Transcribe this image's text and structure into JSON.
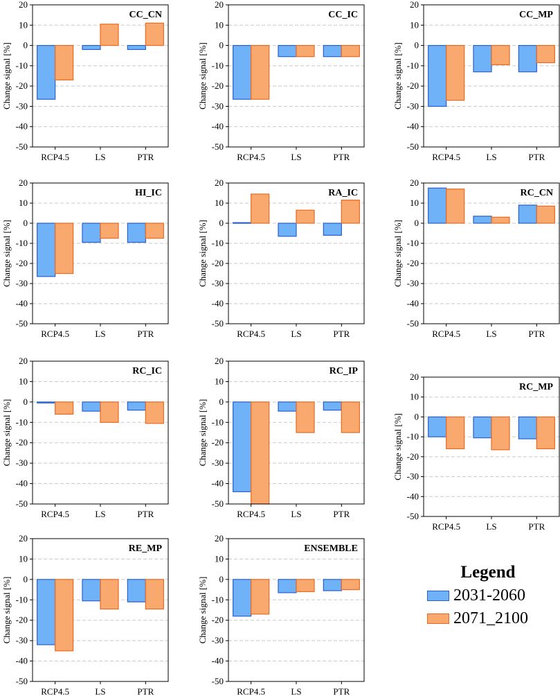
{
  "chart_data": {
    "type": "bar",
    "ylabel": "Change signal [%]",
    "ylim": [
      -50,
      20
    ],
    "yticks": [
      "20",
      "10",
      "0",
      "-10",
      "-20",
      "-30",
      "-40",
      "-50"
    ],
    "categories": [
      "RCP4.5",
      "LS",
      "PTR"
    ],
    "series_colors": {
      "2031-2060": {
        "fill": "#6fb2f7",
        "stroke": "#2a5fcf"
      },
      "2071_2100": {
        "fill": "#f9a86e",
        "stroke": "#ea6a23"
      }
    },
    "panels": [
      {
        "title": "CC_CN",
        "series": [
          {
            "name": "2031-2060",
            "values": [
              -26.5,
              -2,
              -2
            ]
          },
          {
            "name": "2071_2100",
            "values": [
              -17,
              10.5,
              11
            ]
          }
        ]
      },
      {
        "title": "CC_IC",
        "series": [
          {
            "name": "2031-2060",
            "values": [
              -26.5,
              -5.5,
              -5.5
            ]
          },
          {
            "name": "2071_2100",
            "values": [
              -26.5,
              -5.5,
              -5.5
            ]
          }
        ]
      },
      {
        "title": "CC_MP",
        "series": [
          {
            "name": "2031-2060",
            "values": [
              -30,
              -13,
              -13
            ]
          },
          {
            "name": "2071_2100",
            "values": [
              -27,
              -9.5,
              -8.5
            ]
          }
        ]
      },
      {
        "title": "HI_IC",
        "series": [
          {
            "name": "2031-2060",
            "values": [
              -26.5,
              -9.5,
              -9.5
            ]
          },
          {
            "name": "2071_2100",
            "values": [
              -25,
              -7.5,
              -7.5
            ]
          }
        ]
      },
      {
        "title": "RA_IC",
        "series": [
          {
            "name": "2031-2060",
            "values": [
              0.3,
              -6.5,
              -6
            ]
          },
          {
            "name": "2071_2100",
            "values": [
              14.5,
              6.5,
              11.5
            ]
          }
        ]
      },
      {
        "title": "RC_CN",
        "series": [
          {
            "name": "2031-2060",
            "values": [
              17.5,
              3.5,
              9
            ]
          },
          {
            "name": "2071_2100",
            "values": [
              17,
              3,
              8.5
            ]
          }
        ]
      },
      {
        "title": "RC_IC",
        "series": [
          {
            "name": "2031-2060",
            "values": [
              -0.5,
              -4.5,
              -4
            ]
          },
          {
            "name": "2071_2100",
            "values": [
              -6,
              -10,
              -10.5
            ]
          }
        ]
      },
      {
        "title": "RC_IP",
        "series": [
          {
            "name": "2031-2060",
            "values": [
              -44,
              -4.5,
              -4
            ]
          },
          {
            "name": "2071_2100",
            "values": [
              -50,
              -15,
              -15
            ]
          }
        ]
      },
      {
        "title": "RC_MP",
        "series": [
          {
            "name": "2031-2060",
            "values": [
              -10,
              -10.5,
              -11
            ]
          },
          {
            "name": "2071_2100",
            "values": [
              -16,
              -16.5,
              -16
            ]
          }
        ]
      },
      {
        "title": "RE_MP",
        "series": [
          {
            "name": "2031-2060",
            "values": [
              -32,
              -10.5,
              -11
            ]
          },
          {
            "name": "2071_2100",
            "values": [
              -35,
              -14.5,
              -14.5
            ]
          }
        ]
      },
      {
        "title": "ENSEMBLE",
        "series": [
          {
            "name": "2031-2060",
            "values": [
              -18,
              -6.5,
              -5.5
            ]
          },
          {
            "name": "2071_2100",
            "values": [
              -17,
              -6,
              -5
            ]
          }
        ]
      }
    ]
  },
  "legend": {
    "title": "Legend",
    "items": [
      {
        "label": "2031-2060",
        "fill": "#6fb2f7",
        "stroke": "#2a5fcf"
      },
      {
        "label": "2071_2100",
        "fill": "#f9a86e",
        "stroke": "#ea6a23"
      }
    ]
  }
}
